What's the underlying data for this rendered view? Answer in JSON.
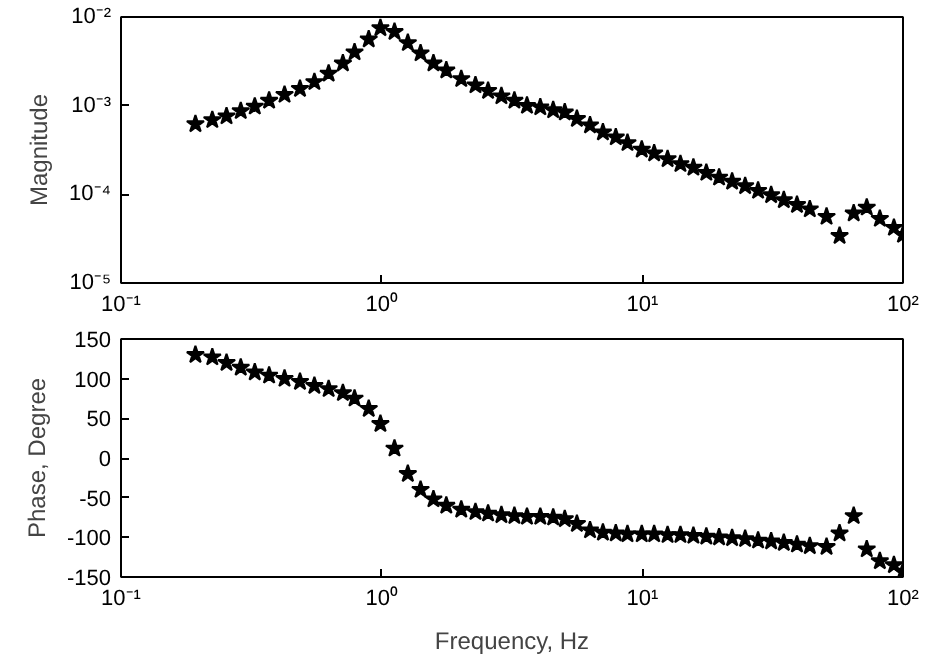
{
  "chart_data": [
    {
      "type": "scatter",
      "ylabel": "Magnitude",
      "log": "xy",
      "marker": "star",
      "grid": false,
      "x": [
        0.193,
        0.224,
        0.254,
        0.288,
        0.326,
        0.37,
        0.424,
        0.486,
        0.552,
        0.626,
        0.71,
        0.787,
        0.892,
        0.989,
        1.12,
        1.26,
        1.41,
        1.58,
        1.77,
        2.02,
        2.29,
        2.56,
        2.88,
        3.23,
        3.61,
        4.06,
        4.55,
        5.04,
        5.61,
        6.3,
        7.06,
        7.91,
        8.77,
        9.95,
        11.1,
        12.5,
        14.0,
        15.7,
        17.6,
        19.7,
        22.1,
        24.8,
        27.8,
        31.2,
        34.9,
        39.2,
        43.9,
        50.9,
        57.1,
        64.7,
        72.6,
        81.5,
        92.3,
        100
      ],
      "series": [
        {
          "color": "#000000",
          "values": [
            0.00062,
            0.00069,
            0.00076,
            0.00087,
            0.00098,
            0.00114,
            0.00133,
            0.00155,
            0.00185,
            0.0023,
            0.003,
            0.004,
            0.0056,
            0.0075,
            0.0068,
            0.0051,
            0.0039,
            0.003,
            0.0025,
            0.002,
            0.0017,
            0.00147,
            0.00128,
            0.00114,
            0.001,
            0.00096,
            0.00089,
            0.00084,
            0.00071,
            0.0006,
            0.0005,
            0.00044,
            0.00038,
            0.00032,
            0.00029,
            0.00025,
            0.00022,
            0.0002,
            0.000175,
            0.000155,
            0.000139,
            0.000124,
            0.00011,
            9.8e-05,
            8.6e-05,
            7.6e-05,
            6.8e-05,
            5.6e-05,
            3.4e-05,
            6.1e-05,
            7.1e-05,
            5.3e-05,
            4.2e-05,
            3.5e-05
          ]
        }
      ],
      "xlim": [
        0.1,
        100
      ],
      "ylim": [
        1e-05,
        0.01
      ],
      "xticks": [
        {
          "value": 0.1,
          "label": "10⁻¹"
        },
        {
          "value": 1,
          "label": "10⁰"
        },
        {
          "value": 10,
          "label": "10¹"
        },
        {
          "value": 100,
          "label": "10²"
        }
      ],
      "yticks": [
        {
          "value": 1e-05,
          "label": "10⁻⁵"
        },
        {
          "value": 0.0001,
          "label": "10⁻⁴"
        },
        {
          "value": 0.001,
          "label": "10⁻³"
        },
        {
          "value": 0.01,
          "label": "10⁻²"
        }
      ]
    },
    {
      "type": "scatter",
      "xlabel": "Frequency, Hz",
      "ylabel": "Phase, Degree",
      "log": "x",
      "marker": "star",
      "grid": false,
      "x": [
        0.193,
        0.224,
        0.254,
        0.288,
        0.326,
        0.37,
        0.424,
        0.486,
        0.552,
        0.626,
        0.71,
        0.787,
        0.892,
        0.989,
        1.12,
        1.26,
        1.41,
        1.58,
        1.77,
        2.02,
        2.29,
        2.56,
        2.88,
        3.23,
        3.61,
        4.06,
        4.55,
        5.04,
        5.61,
        6.3,
        7.06,
        7.91,
        8.77,
        9.95,
        11.1,
        12.5,
        14.0,
        15.7,
        17.6,
        19.7,
        22.1,
        24.8,
        27.8,
        31.2,
        34.9,
        39.2,
        43.9,
        50.9,
        57.1,
        64.7,
        72.6,
        81.5,
        92.3,
        100
      ],
      "series": [
        {
          "color": "#000000",
          "values": [
            130,
            127,
            120,
            114,
            108,
            104,
            100,
            96,
            91,
            87,
            82,
            75,
            62,
            43,
            12,
            -20,
            -40,
            -52,
            -60,
            -65,
            -68,
            -70,
            -72,
            -73,
            -74,
            -74,
            -75,
            -77,
            -83,
            -91,
            -94,
            -95,
            -96,
            -96,
            -96,
            -97,
            -97,
            -98,
            -99,
            -100,
            -101,
            -102,
            -104,
            -105,
            -107,
            -109,
            -111,
            -112,
            -95,
            -73,
            -115,
            -130,
            -135,
            -143
          ]
        }
      ],
      "xlim": [
        0.1,
        100
      ],
      "ylim": [
        -150,
        150
      ],
      "xticks": [
        {
          "value": 0.1,
          "label": "10⁻¹"
        },
        {
          "value": 1,
          "label": "10⁰"
        },
        {
          "value": 10,
          "label": "10¹"
        },
        {
          "value": 100,
          "label": "10²"
        }
      ],
      "yticks": [
        -150,
        -100,
        -50,
        0,
        50,
        100,
        150
      ]
    }
  ]
}
